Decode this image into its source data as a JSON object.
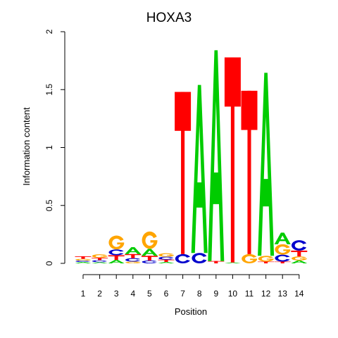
{
  "chart_data": {
    "type": "sequence-logo",
    "title": "HOXA3",
    "xlabel": "Position",
    "ylabel": "Information content",
    "ylim": [
      0,
      2
    ],
    "y_ticks": [
      "0",
      "0.5",
      "1",
      "1.5",
      "2"
    ],
    "y_tick_values": [
      0,
      0.5,
      1,
      1.5,
      2
    ],
    "x_ticks": [
      "1",
      "2",
      "3",
      "4",
      "5",
      "6",
      "7",
      "8",
      "9",
      "10",
      "11",
      "12",
      "13",
      "14"
    ],
    "letter_colors": {
      "A": "#00cc00",
      "C": "#0000cc",
      "G": "#ffa500",
      "T": "#ff0000"
    },
    "positions": [
      {
        "pos": 1,
        "stack": [
          [
            "A",
            0.012
          ],
          [
            "C",
            0.012
          ],
          [
            "G",
            0.015
          ],
          [
            "T",
            0.022
          ]
        ]
      },
      {
        "pos": 2,
        "stack": [
          [
            "A",
            0.01
          ],
          [
            "C",
            0.018
          ],
          [
            "T",
            0.02
          ],
          [
            "G",
            0.03
          ]
        ]
      },
      {
        "pos": 3,
        "stack": [
          [
            "A",
            0.03
          ],
          [
            "T",
            0.04
          ],
          [
            "C",
            0.05
          ],
          [
            "G",
            0.12
          ]
        ]
      },
      {
        "pos": 4,
        "stack": [
          [
            "G",
            0.015
          ],
          [
            "C",
            0.03
          ],
          [
            "T",
            0.035
          ],
          [
            "A",
            0.06
          ]
        ]
      },
      {
        "pos": 5,
        "stack": [
          [
            "C",
            0.025
          ],
          [
            "T",
            0.04
          ],
          [
            "A",
            0.06
          ],
          [
            "G",
            0.15
          ]
        ]
      },
      {
        "pos": 6,
        "stack": [
          [
            "A",
            0.012
          ],
          [
            "T",
            0.02
          ],
          [
            "C",
            0.025
          ],
          [
            "G",
            0.03
          ]
        ]
      },
      {
        "pos": 7,
        "stack": [
          [
            "C",
            0.08
          ],
          [
            "T",
            1.4
          ]
        ]
      },
      {
        "pos": 8,
        "stack": [
          [
            "C",
            0.09
          ],
          [
            "A",
            1.45
          ]
        ]
      },
      {
        "pos": 9,
        "stack": [
          [
            "T",
            0.02
          ],
          [
            "A",
            1.82
          ]
        ]
      },
      {
        "pos": 10,
        "stack": [
          [
            "A",
            0.008
          ],
          [
            "T",
            1.77
          ]
        ]
      },
      {
        "pos": 11,
        "stack": [
          [
            "G",
            0.08
          ],
          [
            "T",
            1.41
          ]
        ]
      },
      {
        "pos": 12,
        "stack": [
          [
            "T",
            0.015
          ],
          [
            "G",
            0.05
          ],
          [
            "A",
            1.58
          ]
        ]
      },
      {
        "pos": 13,
        "stack": [
          [
            "T",
            0.015
          ],
          [
            "C",
            0.06
          ],
          [
            "G",
            0.09
          ],
          [
            "A",
            0.1
          ]
        ]
      },
      {
        "pos": 14,
        "stack": [
          [
            "A",
            0.025
          ],
          [
            "G",
            0.035
          ],
          [
            "T",
            0.05
          ],
          [
            "C",
            0.09
          ]
        ]
      }
    ]
  }
}
